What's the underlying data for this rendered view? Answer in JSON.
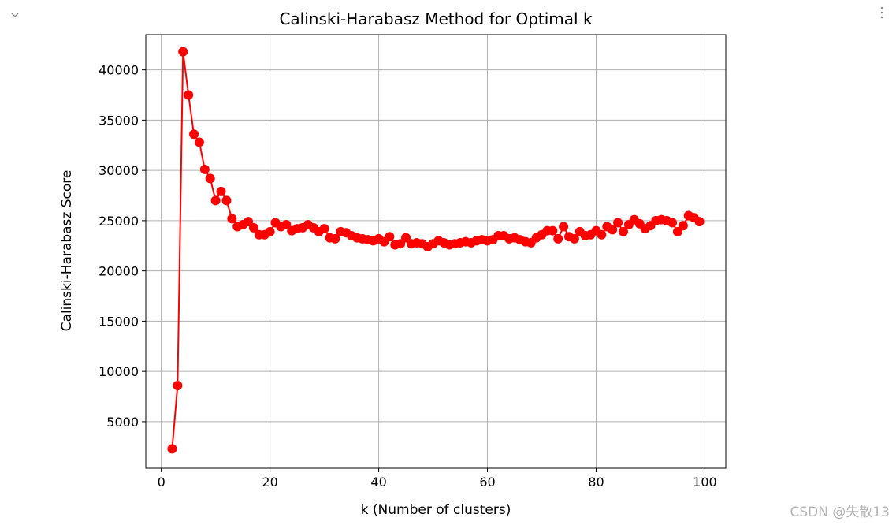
{
  "watermark": "CSDN @失散13",
  "icons": {
    "collapse": "chevron-down-icon",
    "menu": "more-vertical-icon"
  },
  "colors": {
    "series": "#ff0000",
    "grid": "#b0b0b0",
    "axis": "#000000",
    "icon": "#8c8c8c"
  },
  "chart_data": {
    "type": "line",
    "title": "Calinski-Harabasz Method for Optimal k",
    "xlabel": "k (Number of clusters)",
    "ylabel": "Calinski-Harabasz Score",
    "xlim": [
      -2.85,
      103.85
    ],
    "ylim": [
      366,
      43500
    ],
    "xticks": [
      0,
      20,
      40,
      60,
      80,
      100
    ],
    "yticks": [
      5000,
      10000,
      15000,
      20000,
      25000,
      30000,
      35000,
      40000
    ],
    "grid": true,
    "marker": "circle",
    "series": [
      {
        "x": [
          2,
          3,
          4,
          5,
          6,
          7,
          8,
          9,
          10,
          11,
          12,
          13,
          14,
          15,
          16,
          17,
          18,
          19,
          20,
          21,
          22,
          23,
          24,
          25,
          26,
          27,
          28,
          29,
          30,
          31,
          32,
          33,
          34,
          35,
          36,
          37,
          38,
          39,
          40,
          41,
          42,
          43,
          44,
          45,
          46,
          47,
          48,
          49,
          50,
          51,
          52,
          53,
          54,
          55,
          56,
          57,
          58,
          59,
          60,
          61,
          62,
          63,
          64,
          65,
          66,
          67,
          68,
          69,
          70,
          71,
          72,
          73,
          74,
          75,
          76,
          77,
          78,
          79,
          80,
          81,
          82,
          83,
          84,
          85,
          86,
          87,
          88,
          89,
          90,
          91,
          92,
          93,
          94,
          95,
          96,
          97,
          98,
          99
        ],
        "y": [
          2300,
          8600,
          41800,
          37500,
          33600,
          32800,
          30100,
          29200,
          27000,
          27900,
          27000,
          25200,
          24400,
          24600,
          24900,
          24300,
          23600,
          23600,
          23900,
          24800,
          24400,
          24600,
          24000,
          24200,
          24300,
          24600,
          24300,
          23900,
          24200,
          23300,
          23200,
          23900,
          23800,
          23500,
          23300,
          23200,
          23100,
          23000,
          23200,
          22900,
          23400,
          22600,
          22700,
          23300,
          22700,
          22800,
          22700,
          22400,
          22700,
          23000,
          22800,
          22600,
          22700,
          22800,
          22900,
          22800,
          23000,
          23100,
          23000,
          23100,
          23500,
          23500,
          23200,
          23300,
          23100,
          22900,
          22800,
          23300,
          23600,
          24000,
          24000,
          23200,
          24400,
          23400,
          23200,
          23900,
          23500,
          23600,
          24000,
          23600,
          24400,
          24100,
          24800,
          23900,
          24600,
          25100,
          24700,
          24200,
          24500,
          25000,
          25100,
          25000,
          24800,
          23900,
          24500,
          25500,
          25300,
          24900
        ]
      }
    ]
  }
}
